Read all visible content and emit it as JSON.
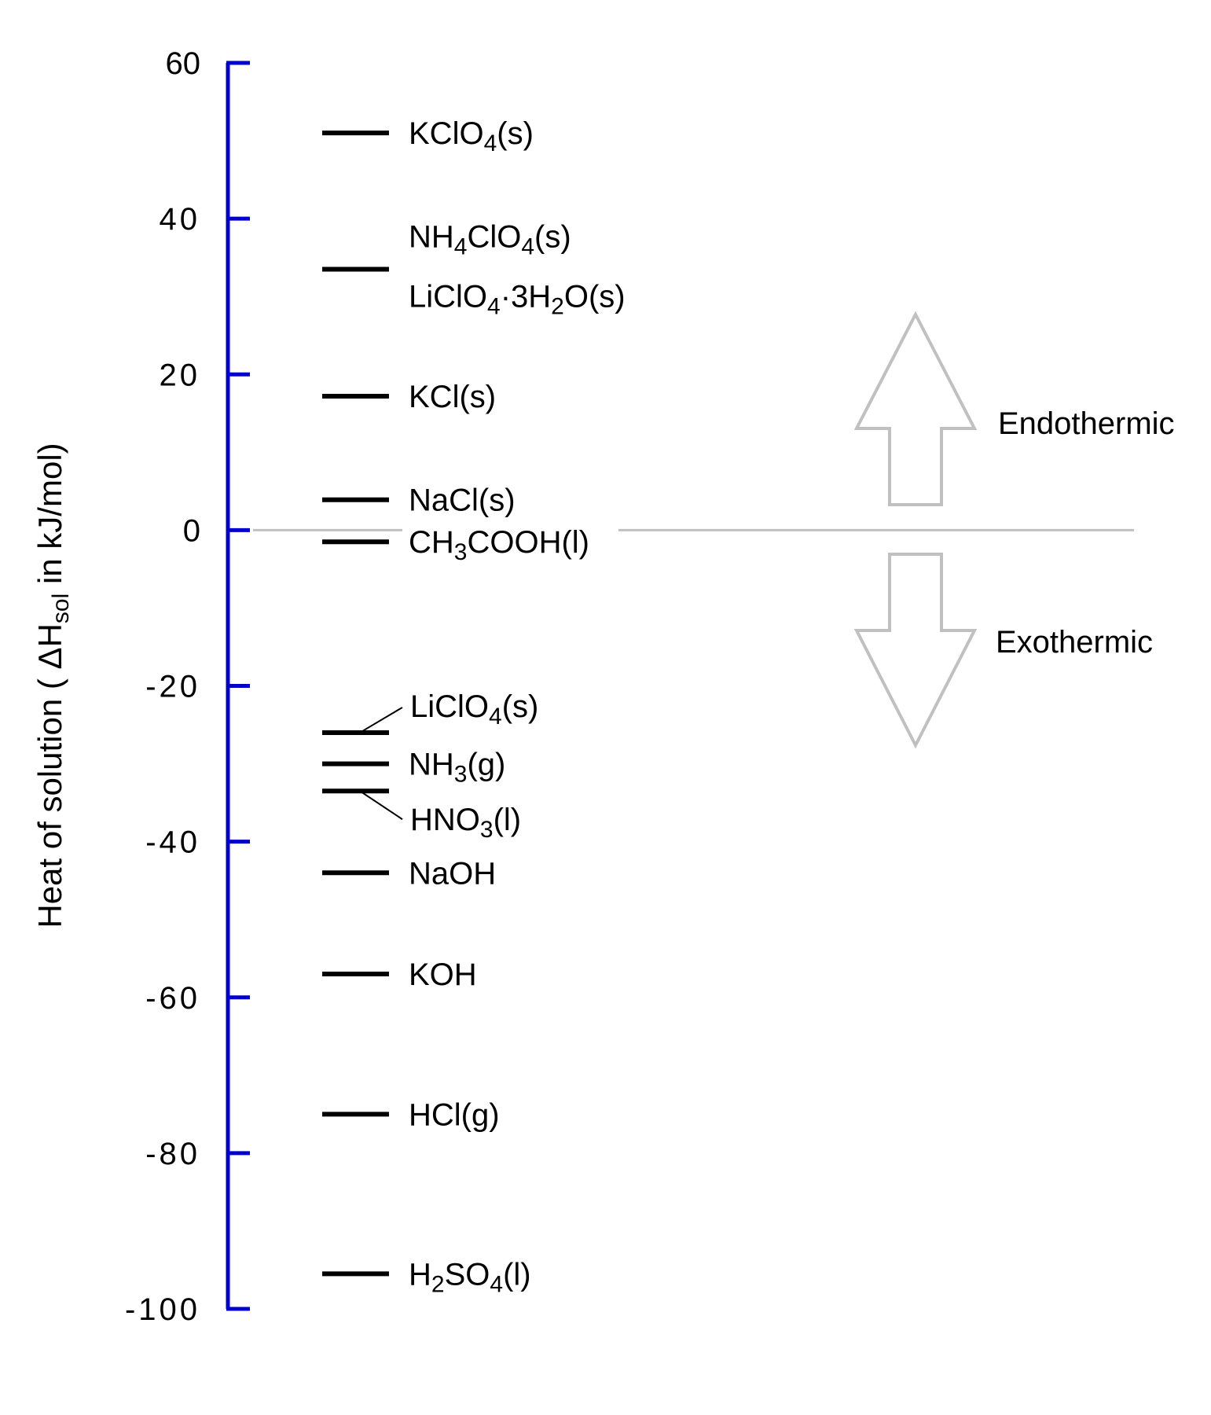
{
  "colors": {
    "axis": "#0000cc",
    "marks": "#000000",
    "zero_line": "#c0c0c0",
    "arrows": "#c0c0c0"
  },
  "chart_data": {
    "type": "scatter",
    "title": "",
    "ylabel_parts": [
      {
        "t": "Heat of solution ( ΔH",
        "s": false
      },
      {
        "t": "sol",
        "s": true
      },
      {
        "t": "  in kJ/mol)",
        "s": false
      }
    ],
    "ylim": [
      -100,
      60
    ],
    "yticks": [
      60,
      40,
      20,
      0,
      -20,
      -40,
      -60,
      -80,
      -100
    ],
    "ytick_labels": [
      "60",
      "40",
      "20",
      "0",
      "-20",
      "-40",
      "-60",
      "-80",
      "-100"
    ],
    "grid": false,
    "reference_line": 0,
    "regions": {
      "up": "Endothermic",
      "down": "Exothermic"
    },
    "compounds": [
      {
        "value": 51.0,
        "parts": [
          {
            "t": "KClO",
            "s": false
          },
          {
            "t": "4",
            "s": true
          },
          {
            "t": "(s)",
            "s": false
          }
        ]
      },
      {
        "value": 33.5,
        "parts": [
          {
            "t": "NH",
            "s": false
          },
          {
            "t": "4",
            "s": true
          },
          {
            "t": "ClO",
            "s": false
          },
          {
            "t": "4",
            "s": true
          },
          {
            "t": "(s)",
            "s": false
          }
        ]
      },
      {
        "value": 33.5,
        "parts": [
          {
            "t": "LiClO",
            "s": false
          },
          {
            "t": "4",
            "s": true
          },
          {
            "t": "·3H",
            "s": false
          },
          {
            "t": "2",
            "s": true
          },
          {
            "t": "O(s)",
            "s": false
          }
        ]
      },
      {
        "value": 17.2,
        "parts": [
          {
            "t": "KCl(s)",
            "s": false
          }
        ]
      },
      {
        "value": 3.9,
        "parts": [
          {
            "t": "NaCl(s)",
            "s": false
          }
        ]
      },
      {
        "value": -1.5,
        "parts": [
          {
            "t": "CH",
            "s": false
          },
          {
            "t": "3",
            "s": true
          },
          {
            "t": "COOH(l)",
            "s": false
          }
        ]
      },
      {
        "value": -26.0,
        "parts": [
          {
            "t": "LiClO",
            "s": false
          },
          {
            "t": "4",
            "s": true
          },
          {
            "t": "(s)",
            "s": false
          }
        ]
      },
      {
        "value": -30.0,
        "parts": [
          {
            "t": "NH",
            "s": false
          },
          {
            "t": "3",
            "s": true
          },
          {
            "t": "(g)",
            "s": false
          }
        ]
      },
      {
        "value": -33.5,
        "parts": [
          {
            "t": "HNO",
            "s": false
          },
          {
            "t": "3",
            "s": true
          },
          {
            "t": "(l)",
            "s": false
          }
        ]
      },
      {
        "value": -44.0,
        "parts": [
          {
            "t": "NaOH",
            "s": false
          }
        ]
      },
      {
        "value": -57.0,
        "parts": [
          {
            "t": "KOH",
            "s": false
          }
        ]
      },
      {
        "value": -75.0,
        "parts": [
          {
            "t": "HCl(g)",
            "s": false
          }
        ]
      },
      {
        "value": -95.5,
        "parts": [
          {
            "t": "H",
            "s": false
          },
          {
            "t": "2",
            "s": true
          },
          {
            "t": "SO",
            "s": false
          },
          {
            "t": "4",
            "s": true
          },
          {
            "t": "(l)",
            "s": false
          }
        ]
      }
    ]
  }
}
